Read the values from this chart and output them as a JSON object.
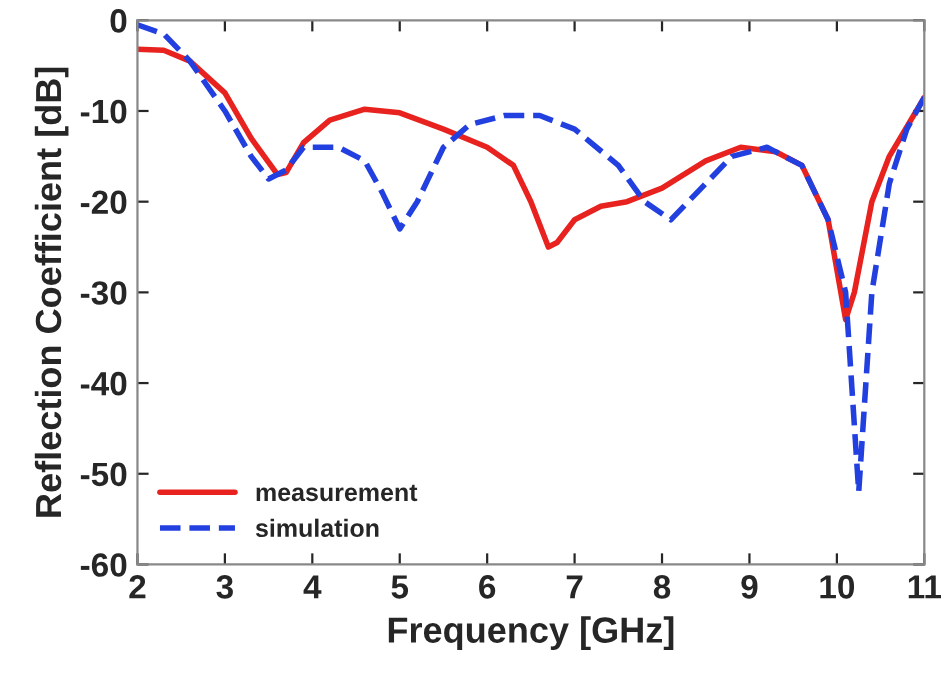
{
  "chart_data": {
    "type": "line",
    "xlabel": "Frequency [GHz]",
    "ylabel": "Reflection Coefficient [dB]",
    "xlim": [
      2,
      11
    ],
    "xticks": [
      2,
      3,
      4,
      5,
      6,
      7,
      8,
      9,
      10,
      11
    ],
    "ylim": [
      -60,
      0
    ],
    "yticks": [
      -60,
      -50,
      -40,
      -30,
      -20,
      -10,
      0
    ],
    "grid": false,
    "legend": "bottom left",
    "series": [
      {
        "name": "measurement",
        "color": "#e8221e",
        "line_style": "solid",
        "x": [
          2,
          2.3,
          2.6,
          3.0,
          3.3,
          3.6,
          3.7,
          3.9,
          4.2,
          4.6,
          5.0,
          5.5,
          6.0,
          6.3,
          6.5,
          6.7,
          6.8,
          7.0,
          7.3,
          7.6,
          8.0,
          8.5,
          8.9,
          9.3,
          9.6,
          9.9,
          10.1,
          10.2,
          10.4,
          10.6,
          11
        ],
        "values": [
          -3.2,
          -3.3,
          -4.5,
          -8,
          -13,
          -17,
          -16.8,
          -13.5,
          -11,
          -9.8,
          -10.2,
          -12,
          -14,
          -16,
          -20,
          -25,
          -24.5,
          -22,
          -20.5,
          -20,
          -18.5,
          -15.5,
          -14,
          -14.5,
          -16,
          -22,
          -33,
          -30,
          -20,
          -15,
          -8.5
        ]
      },
      {
        "name": "simulation",
        "color": "#2240e0",
        "line_style": "dashed",
        "x": [
          2,
          2.3,
          2.6,
          3.0,
          3.3,
          3.5,
          3.7,
          3.9,
          4.3,
          4.6,
          4.8,
          5.0,
          5.2,
          5.5,
          5.8,
          6.2,
          6.6,
          7.0,
          7.5,
          7.8,
          8.1,
          8.4,
          8.8,
          9.2,
          9.6,
          9.9,
          10.1,
          10.25,
          10.4,
          10.6,
          10.8,
          11
        ],
        "values": [
          -0.5,
          -1.5,
          -4.5,
          -10,
          -15,
          -17.5,
          -16.5,
          -14,
          -14,
          -15.5,
          -19,
          -23,
          -20,
          -14,
          -11.5,
          -10.5,
          -10.5,
          -12,
          -16,
          -20,
          -22,
          -19,
          -15,
          -14,
          -16,
          -22,
          -30,
          -52,
          -30,
          -18,
          -12,
          -8.5
        ]
      }
    ]
  }
}
